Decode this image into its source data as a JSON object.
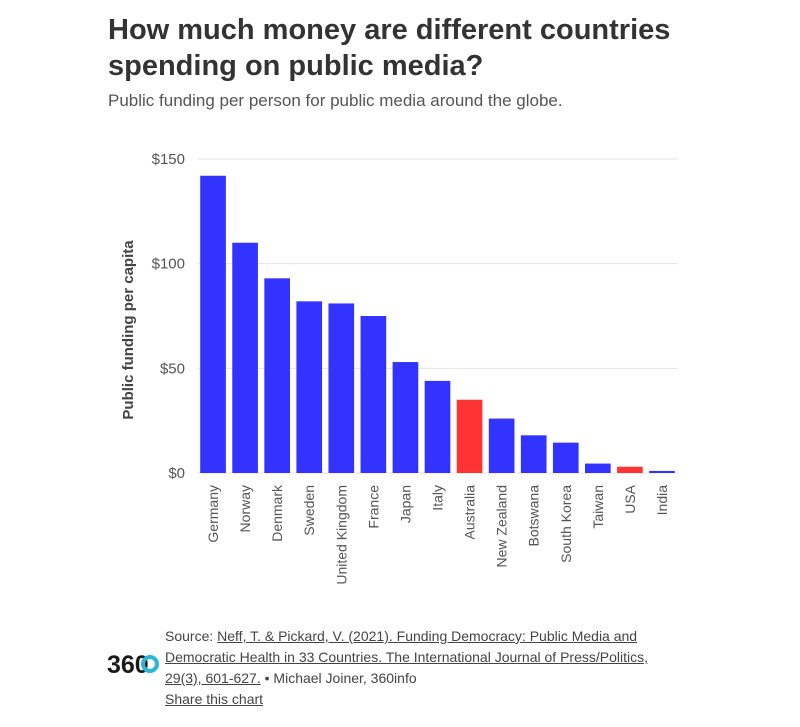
{
  "header": {
    "title": "How much money are different countries spending on public media?",
    "subtitle": "Public funding per person for public media around the globe."
  },
  "footer": {
    "source_label": "Source:",
    "source_link": "Neff, T. & Pickard, V. (2021). Funding Democracy: Public Media and Democratic Health in 33 Countries. The International Journal of Press/Politics, 29(3), 601-627.",
    "credit": " • Michael Joiner, 360info",
    "share_label": "Share this chart"
  },
  "logo": {
    "text": "360",
    "icon": "360info-logo"
  },
  "colors": {
    "default_bar": "#3333ff",
    "highlight_bar": "#ff3333",
    "grid": "#e6e6e6",
    "text": "#555555"
  },
  "chart_data": {
    "type": "bar",
    "ylabel": "Public funding per capita",
    "xlabel": "",
    "ylim": [
      0,
      150
    ],
    "yticks": [
      0,
      50,
      100,
      150
    ],
    "ytick_labels": [
      "$0",
      "$50",
      "$100",
      "$150"
    ],
    "grid": true,
    "categories": [
      "Germany",
      "Norway",
      "Denmark",
      "Sweden",
      "United Kingdom",
      "France",
      "Japan",
      "Italy",
      "Australia",
      "New Zealand",
      "Botswana",
      "South Korea",
      "Taiwan",
      "USA",
      "India"
    ],
    "values": [
      142,
      110,
      93,
      82,
      81,
      75,
      53,
      44,
      35,
      26,
      18,
      14.5,
      4.5,
      3,
      1
    ],
    "highlighted": [
      "Australia",
      "USA"
    ]
  }
}
